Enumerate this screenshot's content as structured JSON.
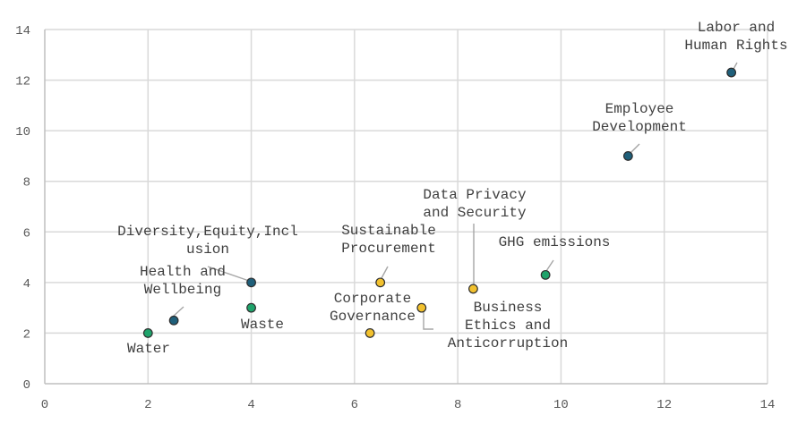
{
  "chart_data": {
    "type": "scatter",
    "title": "",
    "xlabel": "",
    "ylabel": "",
    "xlim": [
      0,
      14
    ],
    "ylim": [
      0,
      14
    ],
    "xticks": [
      0,
      2,
      4,
      6,
      8,
      10,
      12,
      14
    ],
    "yticks": [
      0,
      2,
      4,
      6,
      8,
      10,
      12,
      14
    ],
    "grid": true,
    "colors": {
      "teal": "#1f5f7a",
      "green": "#1fa36b",
      "yellow": "#f2c12e",
      "outline": "#2e2e2e",
      "grid": "#d9d9d9",
      "label": "#404040"
    },
    "points": [
      {
        "label": "Water",
        "x": 2.0,
        "y": 2.0,
        "color": "green"
      },
      {
        "label": "Health and Wellbeing",
        "x": 2.5,
        "y": 2.5,
        "color": "teal"
      },
      {
        "label": "Diversity,Equity,Inclusion",
        "x": 4.0,
        "y": 4.0,
        "color": "teal"
      },
      {
        "label": "Waste",
        "x": 4.0,
        "y": 3.0,
        "color": "green"
      },
      {
        "label": "Corporate Governance",
        "x": 6.3,
        "y": 2.0,
        "color": "yellow"
      },
      {
        "label": "Sustainable Procurement",
        "x": 6.5,
        "y": 4.0,
        "color": "yellow"
      },
      {
        "label": "Business Ethics and Anticorruption",
        "x": 7.3,
        "y": 3.0,
        "color": "yellow"
      },
      {
        "label": "Data Privacy and Security",
        "x": 8.3,
        "y": 3.75,
        "color": "yellow"
      },
      {
        "label": "GHG emissions",
        "x": 9.7,
        "y": 4.3,
        "color": "green"
      },
      {
        "label": "Employee Development",
        "x": 11.3,
        "y": 9.0,
        "color": "teal"
      },
      {
        "label": "Labor and Human Rights",
        "x": 13.3,
        "y": 12.3,
        "color": "teal"
      }
    ]
  }
}
